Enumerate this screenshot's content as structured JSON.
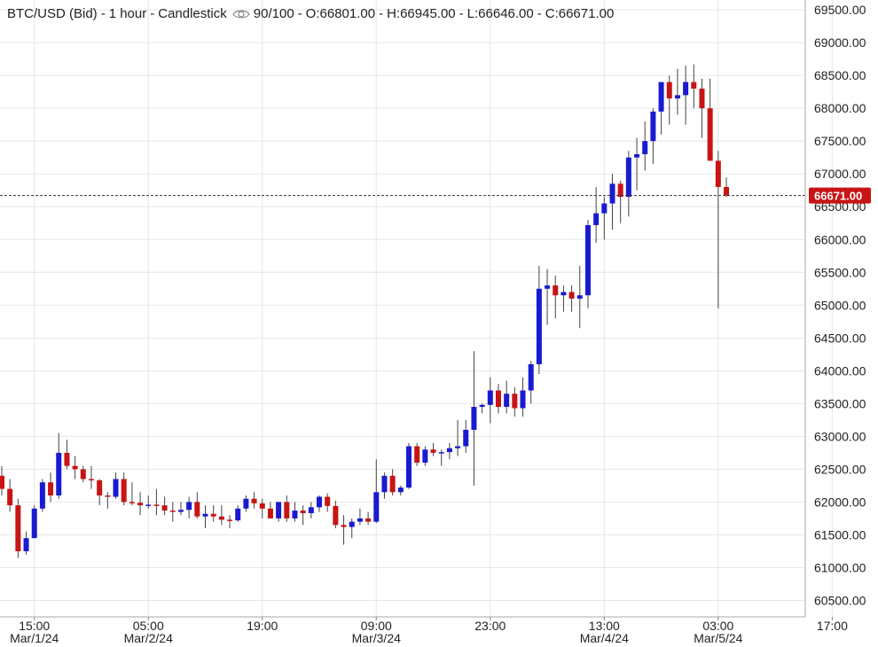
{
  "header": {
    "symbol": "BTC/USD (Bid)",
    "interval": "1 hour",
    "chart_style": "Candlestick",
    "visibility_icon": "eye-icon",
    "quality": "90/100",
    "ohlc": [
      "O:66801.00",
      "H:66945.00",
      "L:66646.00",
      "C:66671.00"
    ]
  },
  "colors": {
    "up": "#1a1ad1",
    "down": "#c81414",
    "grid": "#e6e6e6",
    "price_tag": "#c81414"
  },
  "chart_data": {
    "type": "candlestick",
    "ylim": [
      60250,
      69650
    ],
    "y_ticks": [
      "69500.00",
      "69000.00",
      "68500.00",
      "68000.00",
      "67500.00",
      "67000.00",
      "66500.00",
      "66000.00",
      "65500.00",
      "65000.00",
      "64500.00",
      "64000.00",
      "63500.00",
      "63000.00",
      "62500.00",
      "62000.00",
      "61500.00",
      "61000.00",
      "60500.00"
    ],
    "x_ticks": [
      {
        "time": "15:00",
        "date": "Mar/1/24",
        "index": 4
      },
      {
        "time": "05:00",
        "date": "Mar/2/24",
        "index": 18
      },
      {
        "time": "19:00",
        "date": "",
        "index": 32
      },
      {
        "time": "09:00",
        "date": "Mar/3/24",
        "index": 46
      },
      {
        "time": "23:00",
        "date": "",
        "index": 60
      },
      {
        "time": "13:00",
        "date": "Mar/4/24",
        "index": 74
      },
      {
        "time": "03:00",
        "date": "Mar/5/24",
        "index": 88
      },
      {
        "time": "17:00",
        "date": "",
        "index": 102
      }
    ],
    "last_price": "66671.00",
    "last_value": 66671,
    "candles": [
      [
        62400,
        62550,
        62100,
        62200
      ],
      [
        62200,
        62350,
        61850,
        61950
      ],
      [
        61950,
        62050,
        61150,
        61250
      ],
      [
        61250,
        61550,
        61200,
        61450
      ],
      [
        61450,
        61950,
        61450,
        61900
      ],
      [
        61900,
        62350,
        61850,
        62300
      ],
      [
        62300,
        62450,
        62000,
        62100
      ],
      [
        62100,
        63050,
        62050,
        62750
      ],
      [
        62750,
        62950,
        62500,
        62550
      ],
      [
        62550,
        62700,
        62350,
        62500
      ],
      [
        62500,
        62550,
        62300,
        62350
      ],
      [
        62350,
        62550,
        62200,
        62330
      ],
      [
        62330,
        62350,
        61950,
        62100
      ],
      [
        62100,
        62150,
        61900,
        62080
      ],
      [
        62080,
        62450,
        62050,
        62350
      ],
      [
        62350,
        62450,
        61950,
        62000
      ],
      [
        62000,
        62300,
        61950,
        61990
      ],
      [
        61990,
        62150,
        61800,
        61950
      ],
      [
        61950,
        62100,
        61900,
        61960
      ],
      [
        61960,
        62200,
        61800,
        61950
      ],
      [
        61950,
        62080,
        61800,
        61870
      ],
      [
        61870,
        62000,
        61700,
        61850
      ],
      [
        61850,
        62000,
        61800,
        61880
      ],
      [
        61880,
        62080,
        61750,
        62000
      ],
      [
        62000,
        62150,
        61750,
        61780
      ],
      [
        61780,
        61950,
        61600,
        61820
      ],
      [
        61820,
        61950,
        61700,
        61780
      ],
      [
        61780,
        61950,
        61650,
        61730
      ],
      [
        61730,
        61800,
        61600,
        61720
      ],
      [
        61720,
        61950,
        61700,
        61900
      ],
      [
        61900,
        62100,
        61850,
        62050
      ],
      [
        62050,
        62150,
        61900,
        61980
      ],
      [
        61980,
        62050,
        61750,
        61900
      ],
      [
        61900,
        62000,
        61800,
        61750
      ],
      [
        61750,
        62000,
        61700,
        62000
      ],
      [
        62000,
        62100,
        61700,
        61750
      ],
      [
        61750,
        62000,
        61700,
        61870
      ],
      [
        61870,
        61950,
        61650,
        61830
      ],
      [
        61830,
        62000,
        61750,
        61920
      ],
      [
        61920,
        62100,
        61850,
        62080
      ],
      [
        62080,
        62130,
        61850,
        61940
      ],
      [
        61940,
        62020,
        61600,
        61650
      ],
      [
        61650,
        61800,
        61350,
        61620
      ],
      [
        61620,
        61750,
        61450,
        61700
      ],
      [
        61700,
        61900,
        61650,
        61750
      ],
      [
        61750,
        61850,
        61650,
        61700
      ],
      [
        61700,
        62650,
        61680,
        62150
      ],
      [
        62150,
        62450,
        62050,
        62400
      ],
      [
        62400,
        62500,
        62100,
        62150
      ],
      [
        62150,
        62250,
        62100,
        62220
      ],
      [
        62220,
        62900,
        62200,
        62850
      ],
      [
        62850,
        62900,
        62550,
        62600
      ],
      [
        62600,
        62850,
        62550,
        62800
      ],
      [
        62800,
        62900,
        62700,
        62750
      ],
      [
        62750,
        62800,
        62550,
        62760
      ],
      [
        62760,
        62900,
        62650,
        62820
      ],
      [
        62820,
        63250,
        62700,
        62850
      ],
      [
        62850,
        63250,
        62750,
        63100
      ],
      [
        63100,
        64300,
        62250,
        63450
      ],
      [
        63450,
        63500,
        63350,
        63480
      ],
      [
        63480,
        63900,
        63200,
        63700
      ],
      [
        63700,
        63800,
        63350,
        63450
      ],
      [
        63450,
        63850,
        63350,
        63650
      ],
      [
        63650,
        63750,
        63300,
        63430
      ],
      [
        63430,
        63900,
        63300,
        63700
      ],
      [
        63700,
        64150,
        63500,
        64100
      ],
      [
        64100,
        65600,
        63950,
        65250
      ],
      [
        65250,
        65550,
        64700,
        65300
      ],
      [
        65300,
        65450,
        64800,
        65150
      ],
      [
        65150,
        65300,
        64900,
        65200
      ],
      [
        65200,
        65300,
        64900,
        65100
      ],
      [
        65100,
        65600,
        64650,
        65150
      ],
      [
        65150,
        66300,
        64950,
        66220
      ],
      [
        66220,
        66800,
        65950,
        66400
      ],
      [
        66400,
        66650,
        66000,
        66550
      ],
      [
        66550,
        67000,
        66150,
        66850
      ],
      [
        66850,
        66900,
        66250,
        66650
      ],
      [
        66650,
        67350,
        66350,
        67250
      ],
      [
        67250,
        67550,
        66750,
        67300
      ],
      [
        67300,
        67800,
        67050,
        67500
      ],
      [
        67500,
        68000,
        67150,
        67950
      ],
      [
        67950,
        68350,
        67600,
        68400
      ],
      [
        68400,
        68500,
        67750,
        68150
      ],
      [
        68150,
        68600,
        67900,
        68200
      ],
      [
        68200,
        68650,
        67750,
        68400
      ],
      [
        68400,
        68670,
        68000,
        68300
      ],
      [
        68300,
        68450,
        67550,
        68000
      ],
      [
        68000,
        68450,
        67250,
        67200
      ],
      [
        67200,
        67350,
        64950,
        66801
      ],
      [
        66801,
        66945,
        66646,
        66671
      ]
    ]
  }
}
